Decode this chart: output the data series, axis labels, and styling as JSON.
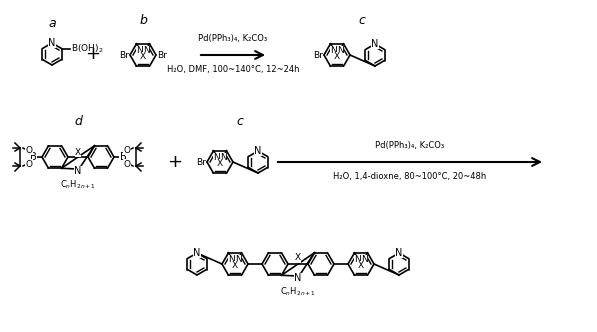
{
  "bg": "#ffffff",
  "lc": "#000000",
  "tc": "#000000",
  "fig_w": 5.97,
  "fig_h": 3.32,
  "dpi": 100,
  "r1_reagents": "Pd(PPh₃)₄, K₂CO₃",
  "r1_conditions": "H₂O, DMF, 100~140°C, 12~24h",
  "r2_reagents": "Pd(PPh₃)₄, K₂CO₃",
  "r2_conditions": "H₂O, 1,4-dioxne, 80~100°C, 20~48h"
}
